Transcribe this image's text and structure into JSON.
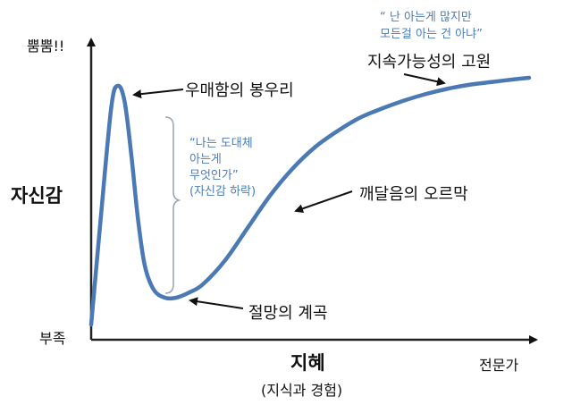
{
  "chart_data": {
    "type": "line",
    "title": "",
    "xlabel": "지혜",
    "xlabel_sub": "(지식과 경험)",
    "ylabel": "자신감",
    "y_high_label": "뿜뿜!!",
    "y_low_label": "부족",
    "x_end_label": "전문가",
    "curve_color": "#4a79b3",
    "note_color": "#4a7db5",
    "grid": false,
    "legend": "none",
    "x_range": [
      0,
      100
    ],
    "y_range": [
      0,
      100
    ],
    "series": [
      {
        "x": [
          0,
          2,
          4.5,
          6,
          7.5,
          9,
          10.5,
          12,
          14,
          16.5,
          19,
          22,
          25,
          30,
          35,
          40,
          45,
          50,
          55,
          60,
          65,
          70,
          75,
          80,
          85,
          90,
          95,
          98
        ],
        "y": [
          3,
          40,
          84,
          92,
          86,
          66,
          42,
          25,
          16,
          13,
          13,
          15,
          18,
          27,
          39,
          51,
          61,
          69,
          75,
          80,
          83.5,
          86.5,
          89,
          91,
          92.5,
          93.5,
          94.5,
          95
        ]
      }
    ],
    "annotations": [
      {
        "text": "우매함의 봉우리",
        "x": 6,
        "y": 92,
        "arrow": true
      },
      {
        "text": "절망의 계곡",
        "x": 17,
        "y": 13,
        "arrow": true
      },
      {
        "text": "깨달음의 오르막",
        "x": 47,
        "y": 64,
        "arrow": true
      },
      {
        "text": "지속가능성의 고원",
        "x": 80,
        "y": 91,
        "arrow": true
      }
    ],
    "notes": [
      {
        "lines": [
          "“나는 도대체",
          "아는게",
          "무엇인가”",
          "(자신감 하락)"
        ]
      },
      {
        "lines": [
          "“ 난 아는게 많지만",
          "모든걸 아는 건 아냐”"
        ]
      }
    ]
  }
}
